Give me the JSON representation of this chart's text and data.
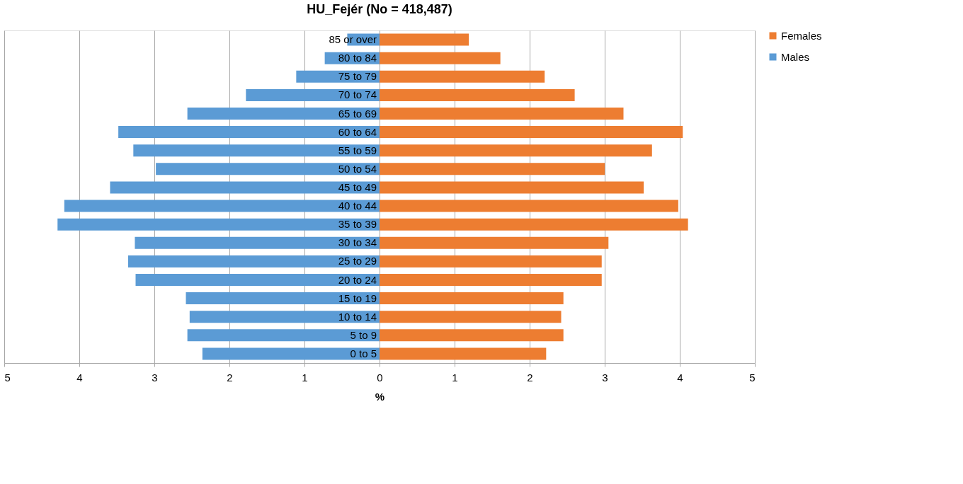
{
  "chart_data": {
    "type": "bar",
    "orientation": "horizontal",
    "stacked": true,
    "title": "HU_Fejér (No = 418,487)",
    "xlabel": "%",
    "categories": [
      "85 or over",
      "80 to 84",
      "75 to 79",
      "70 to 74",
      "65 to 69",
      "60 to 64",
      "55 to 59",
      "50 to 54",
      "45 to 49",
      "40 to 44",
      "35 to 39",
      "30 to 34",
      "25 to 29",
      "20 to 24",
      "15 to 19",
      "10 to 14",
      "5 to 9",
      "0 to 5"
    ],
    "series": [
      {
        "name": "Females",
        "color": "#ed7d31",
        "values": [
          1.19,
          1.61,
          2.2,
          2.6,
          3.25,
          4.04,
          3.63,
          3.0,
          3.52,
          3.98,
          4.11,
          3.05,
          2.96,
          2.96,
          2.45,
          2.42,
          2.45,
          2.22
        ]
      },
      {
        "name": "Males",
        "color": "#5b9bd5",
        "values": [
          -0.43,
          -0.73,
          -1.11,
          -1.78,
          -2.56,
          -3.48,
          -3.28,
          -2.98,
          -3.59,
          -4.2,
          -4.29,
          -3.26,
          -3.35,
          -3.25,
          -2.58,
          -2.53,
          -2.56,
          -2.36
        ]
      }
    ],
    "xlim": [
      -5,
      5
    ],
    "xticks": [
      {
        "value": -5,
        "label": "5"
      },
      {
        "value": -4,
        "label": "4"
      },
      {
        "value": -3,
        "label": "3"
      },
      {
        "value": -2,
        "label": "2"
      },
      {
        "value": -1,
        "label": "1"
      },
      0,
      1,
      2,
      3,
      4,
      5
    ],
    "grid": "x",
    "legend": "right"
  }
}
